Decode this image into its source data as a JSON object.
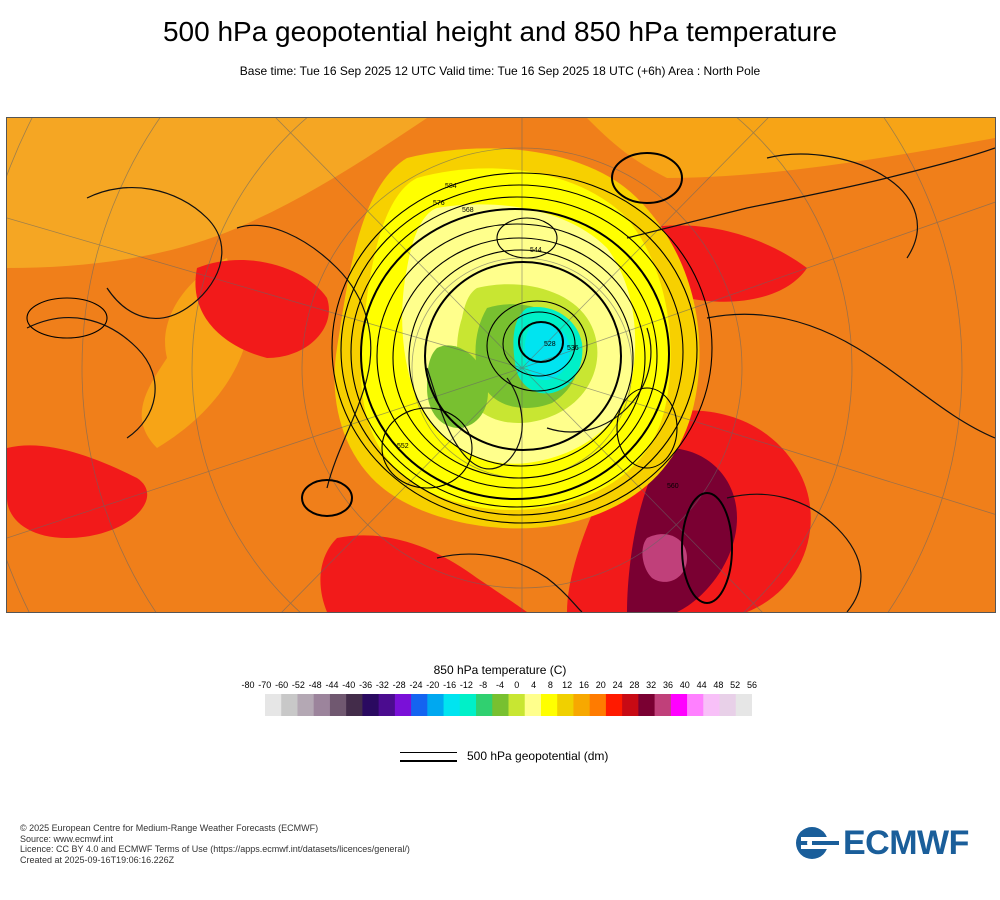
{
  "title": "500 hPa geopotential height and 850 hPa temperature",
  "subtitle": "Base time: Tue 16 Sep 2025 12 UTC Valid time: Tue 16 Sep 2025 18 UTC (+6h) Area : North Pole",
  "map": {
    "projection": "polar-stereographic",
    "area": "North Pole",
    "contour_labels": [
      "576",
      "584",
      "568",
      "544",
      "552",
      "560",
      "536",
      "528"
    ]
  },
  "legend": {
    "title": "850 hPa temperature (C)",
    "ticks": [
      "-80",
      "-70",
      "-60",
      "-52",
      "-48",
      "-44",
      "-40",
      "-36",
      "-32",
      "-28",
      "-24",
      "-20",
      "-16",
      "-12",
      "-8",
      "-4",
      "0",
      "4",
      "8",
      "12",
      "16",
      "20",
      "24",
      "28",
      "32",
      "36",
      "40",
      "44",
      "48",
      "52",
      "56"
    ],
    "colors": [
      "#e6e6e6",
      "#c8c8c8",
      "#b4a8b4",
      "#9c849c",
      "#705870",
      "#432c4a",
      "#2a0a60",
      "#4b0c8f",
      "#7a10d8",
      "#1464f0",
      "#00a8f0",
      "#00e4f0",
      "#00f0c8",
      "#30d070",
      "#78c030",
      "#c8e632",
      "#ffff8c",
      "#ffff00",
      "#f0d000",
      "#f7a800",
      "#ff7b00",
      "#ff1a00",
      "#c80a14",
      "#7a0032",
      "#c0407a",
      "#ff00ff",
      "#ff80ff",
      "#f8c0f8",
      "#e8d0e8",
      "#e6e6e6"
    ],
    "contour_label": "500 hPa geopotential (dm)"
  },
  "credits": {
    "line1": "© 2025 European Centre for Medium-Range Weather Forecasts (ECMWF)",
    "line2": "Source: www.ecmwf.int",
    "line3": "Licence: CC BY 4.0 and ECMWF Terms of Use (https://apps.ecmwf.int/datasets/licences/general/)",
    "line4": "Created at 2025-09-16T19:06:16.226Z"
  },
  "logo": {
    "text": "ECMWF",
    "color": "#1a5e9a"
  }
}
